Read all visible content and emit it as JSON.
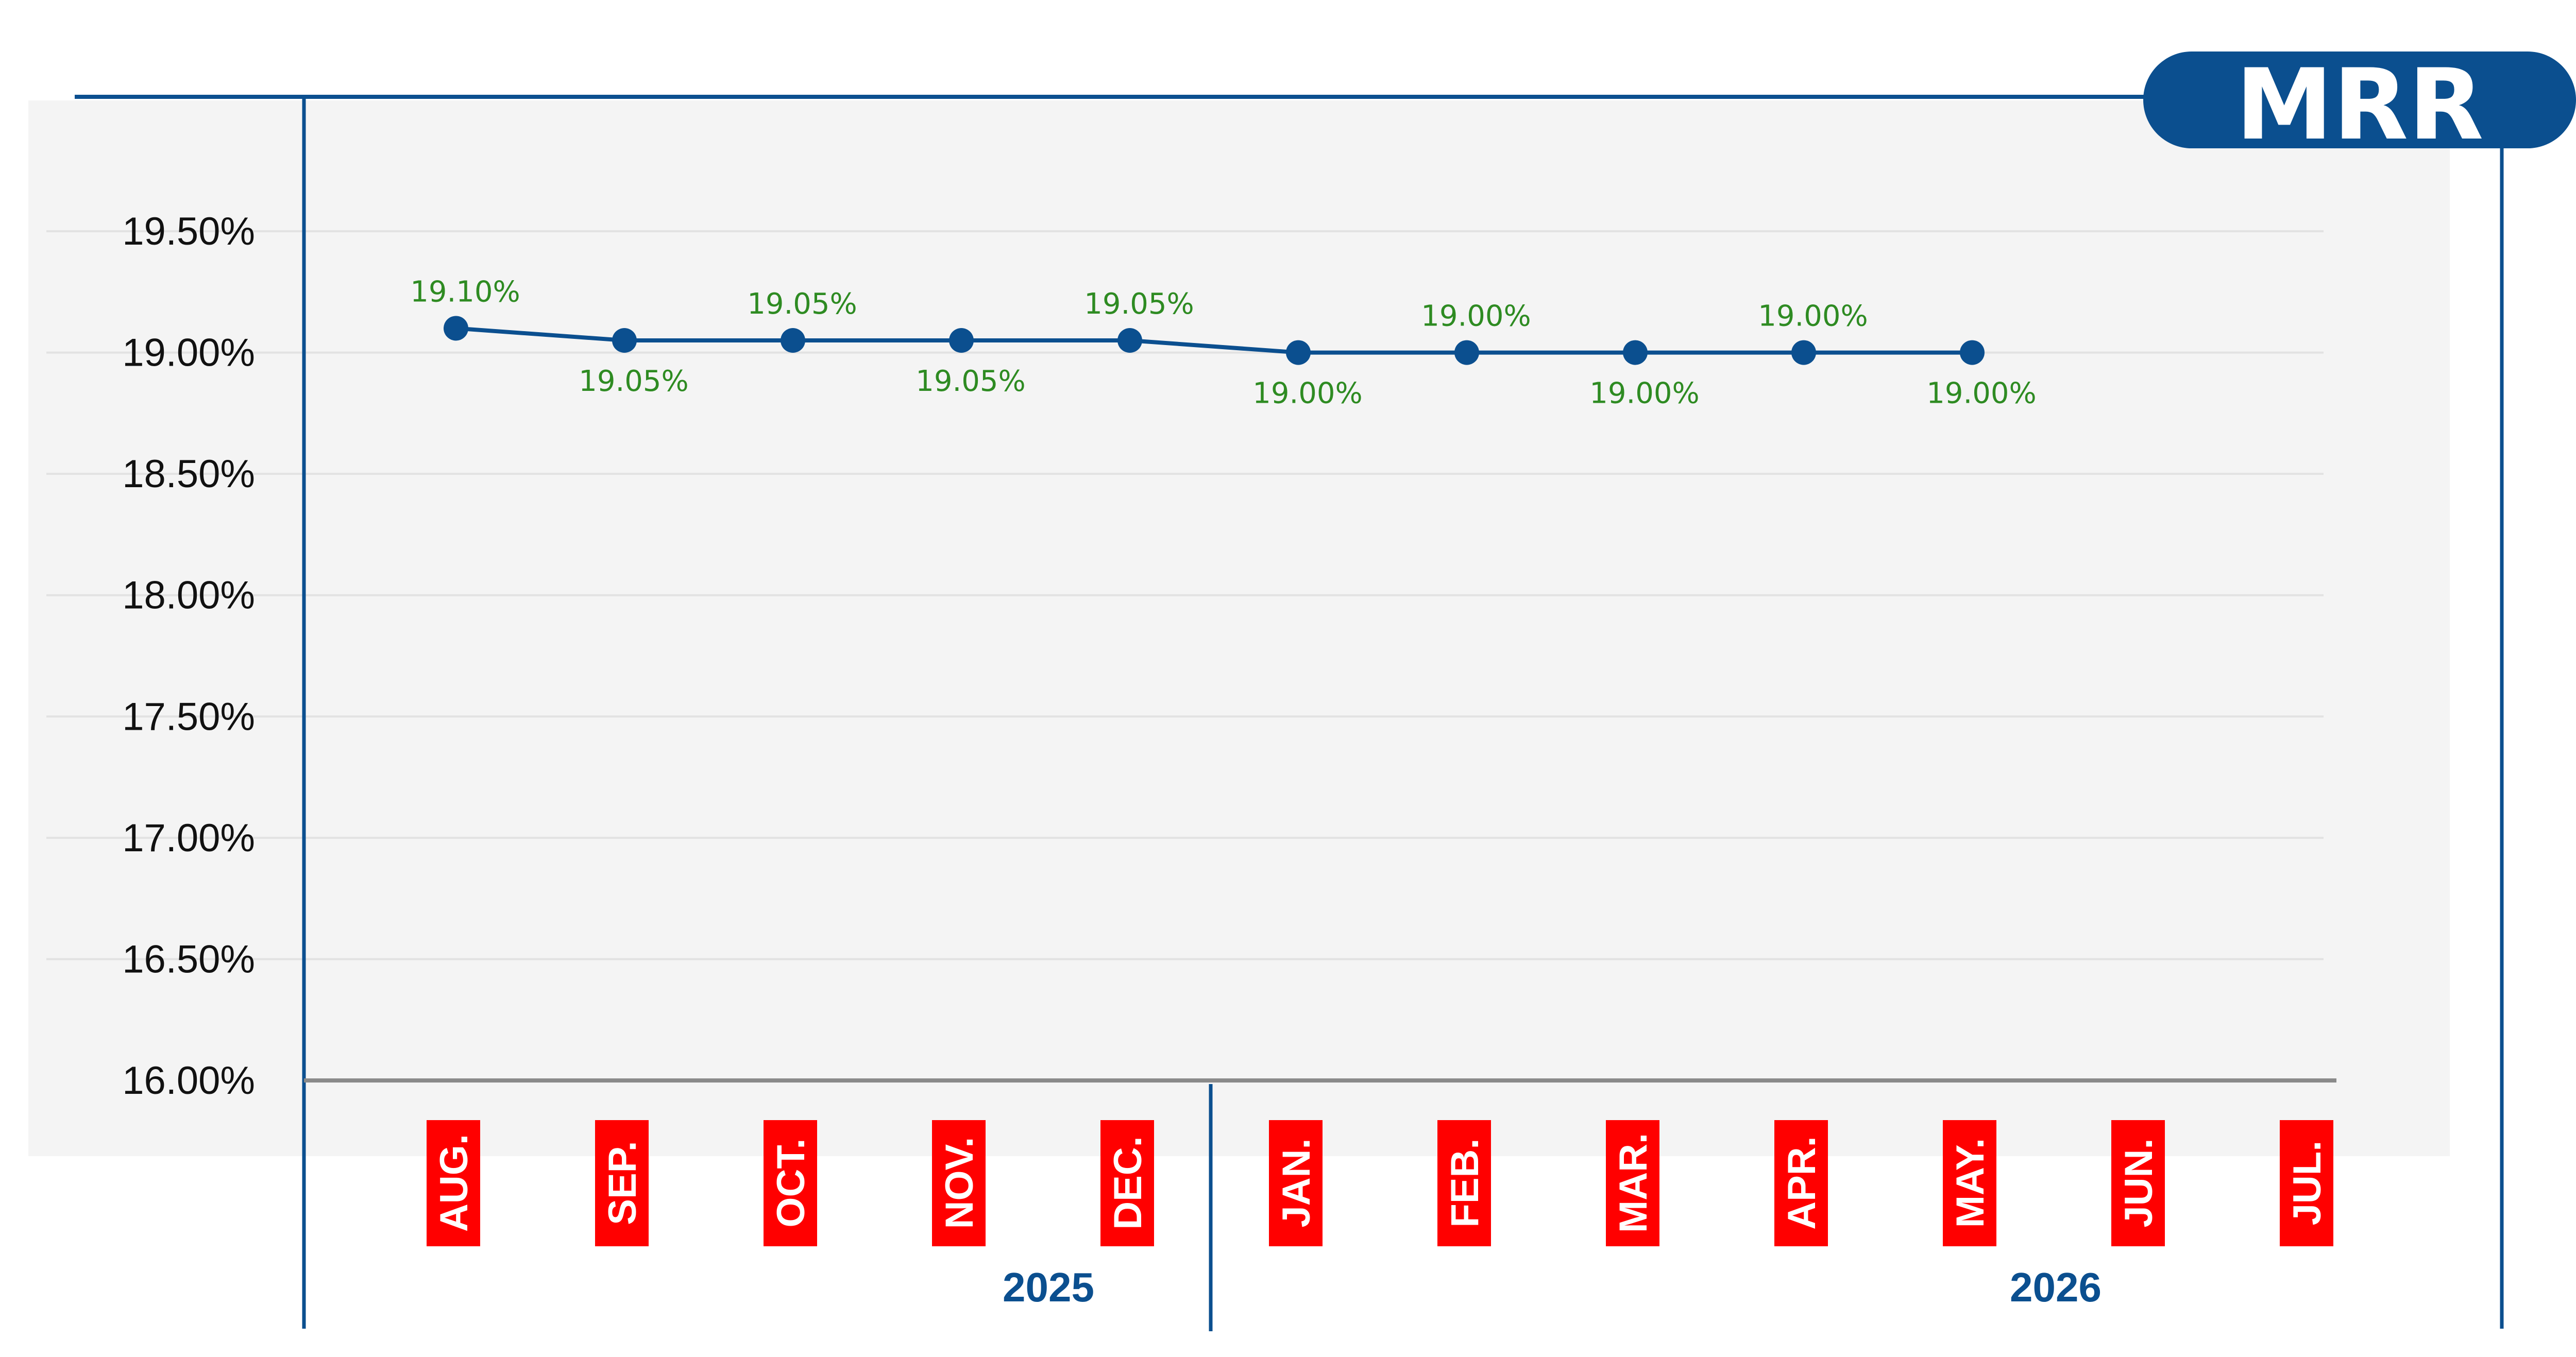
{
  "colors": {
    "accent": "#0b4f8f",
    "data_label": "#2e8b22",
    "month_box": "#ff0000",
    "plot_background": "#f4f4f4",
    "baseline": "#8a8a8a",
    "gridline": "#e2e2e2"
  },
  "badge": {
    "text": "MRR"
  },
  "chart_data": {
    "type": "line",
    "title": "",
    "xlabel": "",
    "ylabel": "",
    "ylim": [
      16.0,
      19.5
    ],
    "y_ticks": [
      "19.50%",
      "19.00%",
      "18.50%",
      "18.00%",
      "17.50%",
      "17.00%",
      "16.50%",
      "16.00%"
    ],
    "y_tick_values": [
      19.5,
      19.0,
      18.5,
      18.0,
      17.5,
      17.0,
      16.5,
      16.0
    ],
    "categories": [
      "AUG.",
      "SEP.",
      "OCT.",
      "NOV.",
      "DEC.",
      "JAN.",
      "FEB.",
      "MAR.",
      "APR.",
      "MAY.",
      "JUN.",
      "JUL."
    ],
    "years": [
      {
        "label": "2025",
        "months": [
          "AUG.",
          "SEP.",
          "OCT.",
          "NOV.",
          "DEC."
        ]
      },
      {
        "label": "2026",
        "months": [
          "JAN.",
          "FEB.",
          "MAR.",
          "APR.",
          "MAY.",
          "JUN.",
          "JUL."
        ]
      }
    ],
    "series": [
      {
        "values": [
          19.1,
          19.05,
          19.05,
          19.05,
          19.05,
          19.0,
          19.0,
          19.0,
          19.0,
          19.0,
          null,
          null
        ],
        "labels": [
          "19.10%",
          "19.05%",
          "19.05%",
          "19.05%",
          "19.05%",
          "19.00%",
          "19.00%",
          "19.00%",
          "19.00%",
          "19.00%",
          "",
          ""
        ],
        "label_positions": [
          "above",
          "below",
          "above",
          "below",
          "above",
          "below",
          "above",
          "below",
          "above",
          "below",
          "",
          ""
        ]
      }
    ],
    "grid": true,
    "legend": "none"
  }
}
